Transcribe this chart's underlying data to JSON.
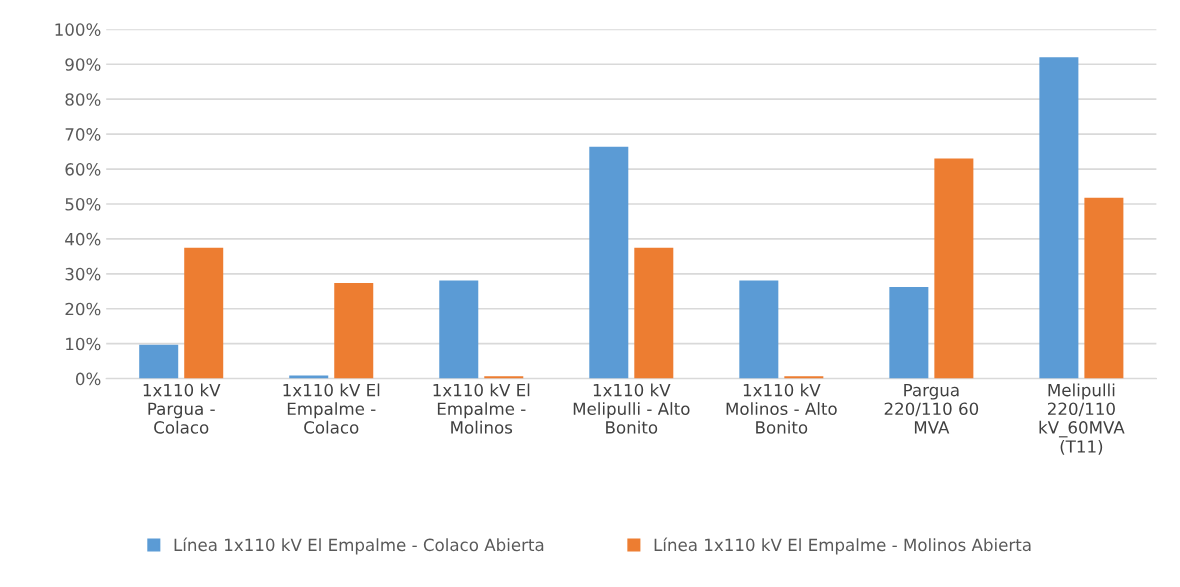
{
  "chart_data": {
    "type": "bar",
    "categories": [
      "1x110 kV\nPargua -\nColaco",
      "1x110 kV El\nEmpalme -\nColaco",
      "1x110 kV El\nEmpalme -\nMolinos",
      "1x110 kV\nMelipulli - Alto\nBonito",
      "1x110 kV\nMolinos - Alto\nBonito",
      "Pargua\n220/110 60\nMVA",
      "Melipulli\n220/110\nkV_60MVA\n(T11)"
    ],
    "series": [
      {
        "name": "Línea 1x110 kV El Empalme - Colaco Abierta",
        "color": "#5b9bd5",
        "values": [
          9.7,
          0.9,
          28.1,
          66.4,
          28.1,
          26.2,
          92.0
        ]
      },
      {
        "name": "Línea 1x110 kV El Empalme - Molinos Abierta",
        "color": "#ed7d31",
        "values": [
          37.5,
          27.4,
          0.7,
          37.5,
          0.7,
          63.0,
          51.8
        ]
      }
    ],
    "ylim": [
      0,
      100
    ],
    "yticks": [
      {
        "value": 0,
        "label": "0%"
      },
      {
        "value": 10,
        "label": "10%"
      },
      {
        "value": 20,
        "label": "20%"
      },
      {
        "value": 30,
        "label": "30%"
      },
      {
        "value": 40,
        "label": "40%"
      },
      {
        "value": 50,
        "label": "50%"
      },
      {
        "value": 60,
        "label": "60%"
      },
      {
        "value": 70,
        "label": "70%"
      },
      {
        "value": 80,
        "label": "80%"
      },
      {
        "value": 90,
        "label": "90%"
      },
      {
        "value": 100,
        "label": "100%"
      }
    ],
    "grid": "y",
    "legend": "bottom"
  }
}
